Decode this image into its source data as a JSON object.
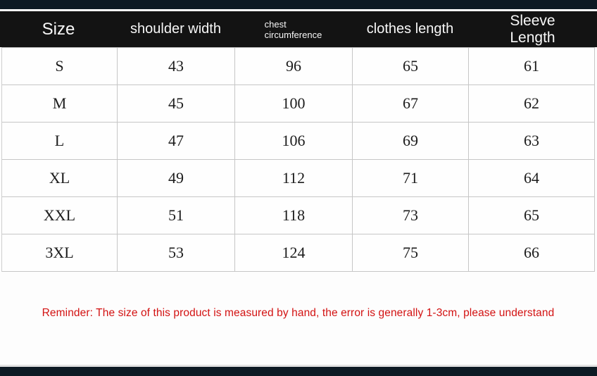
{
  "chart_data": {
    "type": "table",
    "columns": [
      "Size",
      "shoulder width",
      "chest circumference",
      "clothes length",
      "Sleeve Length"
    ],
    "rows": [
      [
        "S",
        "43",
        "96",
        "65",
        "61"
      ],
      [
        "M",
        "45",
        "100",
        "67",
        "62"
      ],
      [
        "L",
        "47",
        "106",
        "69",
        "63"
      ],
      [
        "XL",
        "49",
        "112",
        "71",
        "64"
      ],
      [
        "XXL",
        "51",
        "118",
        "73",
        "65"
      ],
      [
        "3XL",
        "53",
        "124",
        "75",
        "66"
      ]
    ],
    "title": "",
    "annotations": [
      "Reminder: The size of this product is measured by hand, the error is generally 1-3cm, please understand"
    ]
  },
  "header_display": {
    "columns": [
      {
        "lines": [
          "Size"
        ]
      },
      {
        "lines": [
          "shoulder width"
        ]
      },
      {
        "lines": [
          "chest",
          "circumference"
        ]
      },
      {
        "lines": [
          "clothes length"
        ]
      },
      {
        "lines": [
          "Sleeve",
          "Length"
        ]
      }
    ]
  },
  "reminder": "Reminder: The size of this product is measured by hand, the error is generally 1-3cm, please understand",
  "colors": {
    "header_bg": "#131313",
    "header_text": "#f7f7f7",
    "top_bar": "#0d1a24",
    "bottom_bar": "#0d1a24",
    "cell_border": "#c6c6c6",
    "reminder_text": "#d31212"
  }
}
